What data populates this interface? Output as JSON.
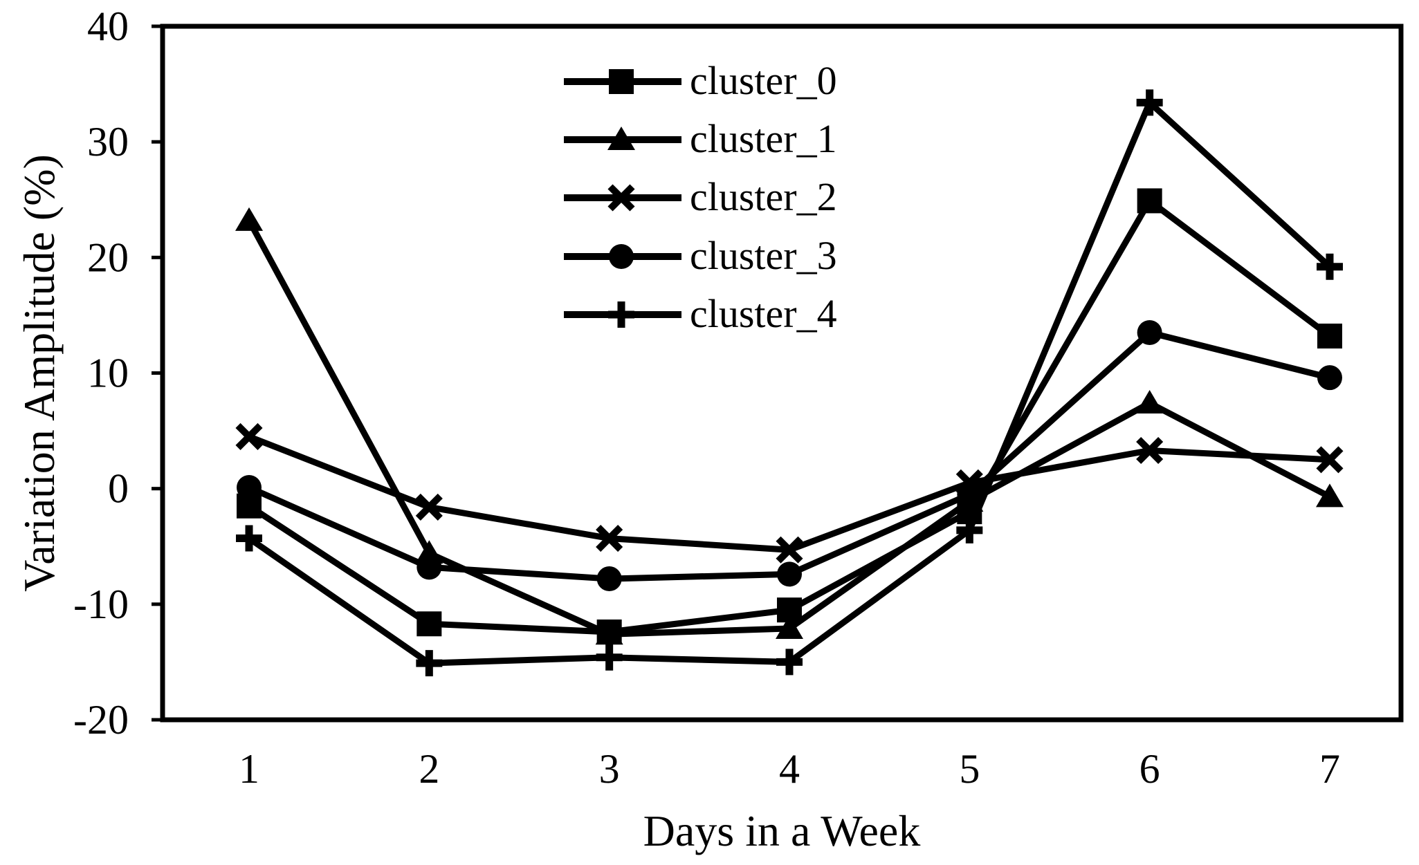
{
  "figure": {
    "background": "#ffffff",
    "ink": "#000000",
    "description": "Line chart of weekly variation amplitude for five clusters"
  },
  "chart_data": {
    "type": "line",
    "title": "",
    "xlabel": "Days in a Week",
    "ylabel": "Variation Amplitude (%)",
    "x": [
      1,
      2,
      3,
      4,
      5,
      6,
      7
    ],
    "xticks": [
      "1",
      "2",
      "3",
      "4",
      "5",
      "6",
      "7"
    ],
    "yticks": [
      40,
      30,
      20,
      10,
      0,
      -10,
      -20
    ],
    "ylim": [
      -20,
      40
    ],
    "xlim": [
      0.5,
      7.5
    ],
    "grid": false,
    "legend_position": "upper-center-inside",
    "legend_entries": [
      "cluster_0",
      "cluster_1",
      "cluster_2",
      "cluster_3",
      "cluster_4"
    ],
    "series": [
      {
        "name": "cluster_0",
        "marker": "square",
        "color": "#000000",
        "values": [
          -1.5,
          -11.7,
          -12.4,
          -10.5,
          -2.0,
          24.9,
          13.2
        ]
      },
      {
        "name": "cluster_1",
        "marker": "triangle",
        "color": "#000000",
        "values": [
          23.2,
          -5.6,
          -12.6,
          -12.1,
          -1.1,
          7.4,
          -0.7
        ]
      },
      {
        "name": "cluster_2",
        "marker": "x",
        "color": "#000000",
        "values": [
          4.5,
          -1.6,
          -4.3,
          -5.3,
          0.5,
          3.3,
          2.5
        ]
      },
      {
        "name": "cluster_3",
        "marker": "circle",
        "color": "#000000",
        "values": [
          0.1,
          -6.8,
          -7.8,
          -7.4,
          -0.5,
          13.5,
          9.6
        ]
      },
      {
        "name": "cluster_4",
        "marker": "plus",
        "color": "#000000",
        "values": [
          -4.3,
          -15.1,
          -14.6,
          -15.0,
          -3.6,
          33.4,
          19.2
        ]
      }
    ]
  }
}
